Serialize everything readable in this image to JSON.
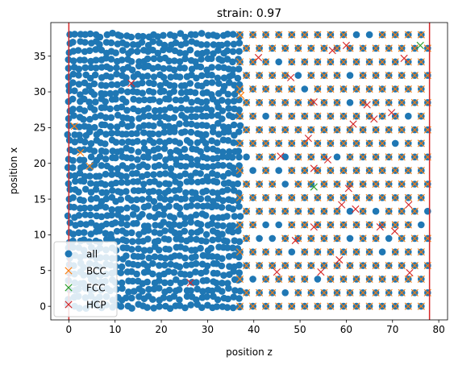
{
  "chart_data": {
    "type": "scatter",
    "title": "strain: 0.97",
    "xlabel": "position z",
    "ylabel": "position x",
    "xlim": [
      -3.9,
      81.9
    ],
    "ylim": [
      -1.9,
      39.7
    ],
    "xticks": [
      0,
      10,
      20,
      30,
      40,
      50,
      60,
      70,
      80
    ],
    "yticks": [
      0,
      5,
      10,
      15,
      20,
      25,
      30,
      35
    ],
    "vlines": [
      0,
      78
    ],
    "vline_color": "#d62728",
    "grid": false,
    "legend": {
      "position": "lower left",
      "entries": [
        {
          "label": "all",
          "marker": "circle",
          "color": "#1f77b4"
        },
        {
          "label": "BCC",
          "marker": "x",
          "color": "#ff7f0e"
        },
        {
          "label": "FCC",
          "marker": "x",
          "color": "#2ca02c"
        },
        {
          "label": "HCP",
          "marker": "x",
          "color": "#d62728"
        }
      ]
    },
    "series": [
      {
        "name": "all",
        "description": "dense atoms filling z 0 to 78, x 0 to 38; amorphous for z below 37, crystalline lattice beyond",
        "x_range": [
          0,
          78
        ],
        "y_range": [
          0,
          38
        ],
        "lattice_start_z": 37
      },
      {
        "name": "BCC",
        "description": "crystalline atoms mainly in z 37 to 78, plus a few near z 1 to 5",
        "extra_points": [
          [
            1.2,
            25.2
          ],
          [
            2.5,
            21.5
          ],
          [
            4.5,
            19.6
          ],
          [
            37.2,
            29.5
          ]
        ]
      },
      {
        "name": "FCC",
        "points": [
          [
            53,
            16.7
          ],
          [
            76,
            36.5
          ]
        ]
      },
      {
        "name": "HCP",
        "points": [
          [
            13.5,
            31.2
          ],
          [
            26.3,
            3.3
          ],
          [
            41,
            34.8
          ],
          [
            45.8,
            21
          ],
          [
            48,
            32
          ],
          [
            51.8,
            23.5
          ],
          [
            53,
            28.6
          ],
          [
            53,
            19.3
          ],
          [
            53,
            11.1
          ],
          [
            54.5,
            4.8
          ],
          [
            57,
            35.8
          ],
          [
            59,
            14.2
          ],
          [
            60.5,
            16.5
          ],
          [
            61.5,
            25.5
          ],
          [
            62,
            13.6
          ],
          [
            64.5,
            28.2
          ],
          [
            67.3,
            11.1
          ],
          [
            69.8,
            27.1
          ],
          [
            70.5,
            10.5
          ],
          [
            73.5,
            14.2
          ],
          [
            73.7,
            4.7
          ],
          [
            60,
            36.5
          ],
          [
            49,
            9.2
          ],
          [
            45,
            4.8
          ],
          [
            58.5,
            6.5
          ],
          [
            66,
            26.2
          ],
          [
            72.5,
            34.7
          ],
          [
            56,
            20.5
          ]
        ]
      }
    ]
  }
}
